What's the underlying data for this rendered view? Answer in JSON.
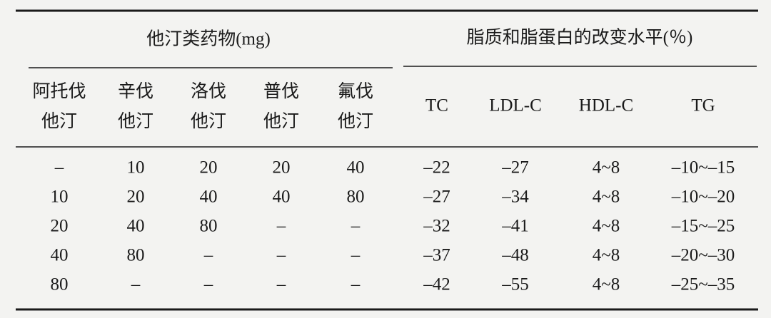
{
  "table": {
    "groups": [
      "他汀类药物(mg)",
      "脂质和脂蛋白的改变水平(％)"
    ],
    "columns": [
      "阿托伐\n他汀",
      "辛伐\n他汀",
      "洛伐\n他汀",
      "普伐\n他汀",
      "氟伐\n他汀",
      "TC",
      "LDL-C",
      "HDL-C",
      "TG"
    ],
    "rows": [
      [
        "–",
        "10",
        "20",
        "20",
        "40",
        "–22",
        "–27",
        "4~8",
        "–10~–15"
      ],
      [
        "10",
        "20",
        "40",
        "40",
        "80",
        "–27",
        "–34",
        "4~8",
        "–10~–20"
      ],
      [
        "20",
        "40",
        "80",
        "–",
        "–",
        "–32",
        "–41",
        "4~8",
        "–15~–25"
      ],
      [
        "40",
        "80",
        "–",
        "–",
        "–",
        "–37",
        "–48",
        "4~8",
        "–20~–30"
      ],
      [
        "80",
        "–",
        "–",
        "–",
        "–",
        "–42",
        "–55",
        "4~8",
        "–25~–35"
      ]
    ]
  }
}
